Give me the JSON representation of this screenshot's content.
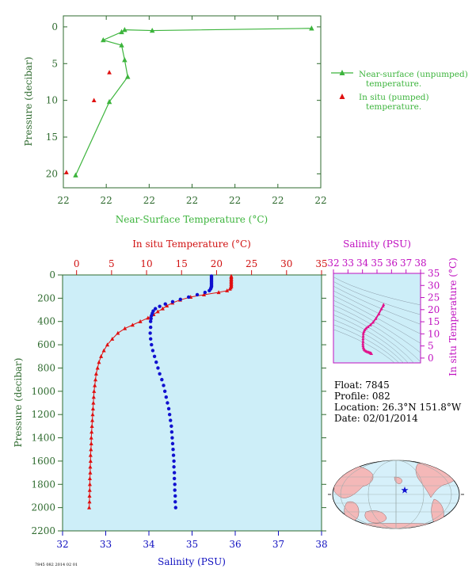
{
  "colors": {
    "near_surface": "#3cb43c",
    "in_situ_temp": "#e01010",
    "salinity": "#1010d0",
    "ts_curve": "#e0148c",
    "axis_green": "#2f6b2f",
    "axis_red": "#d01010",
    "axis_blue": "#1010c0",
    "axis_magenta": "#c010c0",
    "profile_bg": "#cdeef8",
    "ts_bg": "#cdeef8",
    "land": "#f4b8b8",
    "ocean": "#d6f0fa"
  },
  "float_info": {
    "float_line": "Float:  7845",
    "profile_line": "Profile:  082",
    "location_line": "Location:  26.3°N  151.8°W",
    "date_line": "Date:  02/01/2014"
  },
  "footer_code": "7845 082 2014 02 01",
  "chart_data": [
    {
      "id": "near_surface",
      "type": "scatter",
      "xlabel": "Near-Surface Temperature (°C)",
      "ylabel": "Pressure (decibar)",
      "x_tick_labels": [
        "22",
        "22",
        "22",
        "22",
        "22",
        "22",
        "22"
      ],
      "y_ticks": [
        0,
        5,
        10,
        15,
        20
      ],
      "xlim": [
        21.76,
        22.6
      ],
      "ylim": [
        21.9,
        -1.5
      ],
      "grid": false,
      "legend_position": "right",
      "series": [
        {
          "name": "Near-surface (unpumped)\ntemperature.",
          "legend_lines": [
            "Near-surface (unpumped)",
            "temperature."
          ],
          "style": "line+triangle",
          "points": [
            [
              22.57,
              0.2
            ],
            [
              22.05,
              0.5
            ],
            [
              21.96,
              0.4
            ],
            [
              21.95,
              0.7
            ],
            [
              21.89,
              1.8
            ],
            [
              21.95,
              2.5
            ],
            [
              21.96,
              4.5
            ],
            [
              21.97,
              6.8
            ],
            [
              21.91,
              10.2
            ],
            [
              21.8,
              20.2
            ]
          ]
        },
        {
          "name": "In situ (pumped)\ntemperature.",
          "legend_lines": [
            "In situ (pumped)",
            "temperature."
          ],
          "style": "triangle",
          "points": [
            [
              21.91,
              6.2
            ],
            [
              21.86,
              10.0
            ],
            [
              21.77,
              19.8
            ]
          ]
        }
      ]
    },
    {
      "id": "profile",
      "type": "scatter",
      "ylabel": "Pressure (decibar)",
      "y_ticks": [
        0,
        200,
        400,
        600,
        800,
        1000,
        1200,
        1400,
        1600,
        1800,
        2000,
        2200
      ],
      "ylim": [
        2200,
        0
      ],
      "top_axis": {
        "label": "In situ Temperature (°C)",
        "ticks": [
          0,
          5,
          10,
          15,
          20,
          25,
          30,
          35
        ],
        "lim": [
          -2,
          35
        ]
      },
      "bottom_axis": {
        "label": "Salinity (PSU)",
        "ticks": [
          32,
          33,
          34,
          35,
          36,
          37,
          38
        ],
        "lim": [
          32,
          38
        ]
      },
      "series": [
        {
          "name": "In situ Temperature (°C)",
          "style": "line+triangle",
          "points": [
            [
              22.1,
              10
            ],
            [
              22.1,
              20
            ],
            [
              22.1,
              30
            ],
            [
              22.1,
              40
            ],
            [
              22.1,
              50
            ],
            [
              22.1,
              60
            ],
            [
              22.1,
              70
            ],
            [
              22.1,
              80
            ],
            [
              22.1,
              90
            ],
            [
              22.1,
              100
            ],
            [
              22.0,
              110
            ],
            [
              21.9,
              120
            ],
            [
              21.5,
              135
            ],
            [
              20.3,
              150
            ],
            [
              18.2,
              170
            ],
            [
              16.3,
              190
            ],
            [
              14.8,
              215
            ],
            [
              13.7,
              240
            ],
            [
              12.9,
              265
            ],
            [
              12.3,
              290
            ],
            [
              11.6,
              315
            ],
            [
              11.0,
              340
            ],
            [
              10.2,
              370
            ],
            [
              9.1,
              400
            ],
            [
              8.0,
              430
            ],
            [
              6.9,
              460
            ],
            [
              5.9,
              500
            ],
            [
              5.1,
              550
            ],
            [
              4.4,
              600
            ],
            [
              3.9,
              650
            ],
            [
              3.5,
              700
            ],
            [
              3.2,
              750
            ],
            [
              3.0,
              800
            ],
            [
              2.8,
              850
            ],
            [
              2.7,
              900
            ],
            [
              2.6,
              950
            ],
            [
              2.5,
              1000
            ],
            [
              2.45,
              1050
            ],
            [
              2.4,
              1100
            ],
            [
              2.35,
              1150
            ],
            [
              2.3,
              1200
            ],
            [
              2.25,
              1250
            ],
            [
              2.2,
              1300
            ],
            [
              2.15,
              1350
            ],
            [
              2.1,
              1400
            ],
            [
              2.1,
              1450
            ],
            [
              2.05,
              1500
            ],
            [
              2.0,
              1550
            ],
            [
              2.0,
              1600
            ],
            [
              1.95,
              1650
            ],
            [
              1.95,
              1700
            ],
            [
              1.9,
              1750
            ],
            [
              1.9,
              1800
            ],
            [
              1.88,
              1850
            ],
            [
              1.85,
              1900
            ],
            [
              1.85,
              1950
            ],
            [
              1.8,
              2000
            ]
          ]
        },
        {
          "name": "Salinity (PSU)",
          "style": "dots",
          "points": [
            [
              35.45,
              10
            ],
            [
              35.45,
              20
            ],
            [
              35.45,
              30
            ],
            [
              35.45,
              40
            ],
            [
              35.45,
              50
            ],
            [
              35.45,
              60
            ],
            [
              35.45,
              70
            ],
            [
              35.45,
              80
            ],
            [
              35.45,
              90
            ],
            [
              35.45,
              100
            ],
            [
              35.44,
              110
            ],
            [
              35.43,
              120
            ],
            [
              35.4,
              135
            ],
            [
              35.3,
              150
            ],
            [
              35.12,
              170
            ],
            [
              34.92,
              190
            ],
            [
              34.73,
              210
            ],
            [
              34.55,
              230
            ],
            [
              34.38,
              250
            ],
            [
              34.25,
              270
            ],
            [
              34.15,
              290
            ],
            [
              34.1,
              310
            ],
            [
              34.08,
              330
            ],
            [
              34.06,
              350
            ],
            [
              34.05,
              375
            ],
            [
              34.04,
              400
            ],
            [
              34.04,
              450
            ],
            [
              34.03,
              500
            ],
            [
              34.04,
              550
            ],
            [
              34.06,
              600
            ],
            [
              34.09,
              650
            ],
            [
              34.13,
              700
            ],
            [
              34.17,
              750
            ],
            [
              34.21,
              800
            ],
            [
              34.25,
              850
            ],
            [
              34.3,
              900
            ],
            [
              34.34,
              950
            ],
            [
              34.37,
              1000
            ],
            [
              34.4,
              1050
            ],
            [
              34.43,
              1100
            ],
            [
              34.46,
              1150
            ],
            [
              34.48,
              1200
            ],
            [
              34.5,
              1250
            ],
            [
              34.52,
              1300
            ],
            [
              34.53,
              1350
            ],
            [
              34.54,
              1400
            ],
            [
              34.55,
              1450
            ],
            [
              34.56,
              1500
            ],
            [
              34.57,
              1550
            ],
            [
              34.58,
              1600
            ],
            [
              34.58,
              1650
            ],
            [
              34.59,
              1700
            ],
            [
              34.59,
              1750
            ],
            [
              34.6,
              1800
            ],
            [
              34.6,
              1850
            ],
            [
              34.61,
              1900
            ],
            [
              34.61,
              1950
            ],
            [
              34.62,
              2000
            ]
          ]
        }
      ]
    },
    {
      "id": "ts_diagram",
      "type": "scatter",
      "top_axis": {
        "label": "Salinity (PSU)",
        "ticks": [
          32,
          33,
          34,
          35,
          36,
          37,
          38
        ],
        "lim": [
          32,
          38
        ]
      },
      "right_axis": {
        "label": "In situ Temperature (°C)",
        "ticks": [
          0,
          5,
          10,
          15,
          20,
          25,
          30,
          35
        ],
        "lim": [
          -2,
          35
        ]
      },
      "series": [
        {
          "name": "T-S",
          "style": "line+triangle",
          "points": [
            [
              35.45,
              22.1
            ],
            [
              35.42,
              21.5
            ],
            [
              35.3,
              20.3
            ],
            [
              35.12,
              18.2
            ],
            [
              34.92,
              16.3
            ],
            [
              34.73,
              14.8
            ],
            [
              34.55,
              13.7
            ],
            [
              34.38,
              12.9
            ],
            [
              34.25,
              12.3
            ],
            [
              34.15,
              11.6
            ],
            [
              34.1,
              11.0
            ],
            [
              34.06,
              10.2
            ],
            [
              34.05,
              9.1
            ],
            [
              34.04,
              8.0
            ],
            [
              34.04,
              6.9
            ],
            [
              34.03,
              5.9
            ],
            [
              34.04,
              5.1
            ],
            [
              34.06,
              4.4
            ],
            [
              34.09,
              3.9
            ],
            [
              34.13,
              3.5
            ],
            [
              34.17,
              3.2
            ],
            [
              34.25,
              2.8
            ],
            [
              34.34,
              2.6
            ],
            [
              34.43,
              2.4
            ],
            [
              34.5,
              2.25
            ],
            [
              34.55,
              2.1
            ],
            [
              34.58,
              2.0
            ],
            [
              34.6,
              1.9
            ],
            [
              34.62,
              1.8
            ]
          ]
        }
      ]
    },
    {
      "id": "location_map",
      "type": "map",
      "marker": "star",
      "marker_color": "#1010d0"
    }
  ]
}
